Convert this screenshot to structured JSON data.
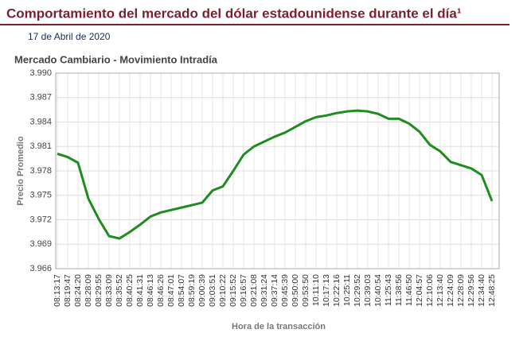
{
  "header": {
    "title": "Comportamiento del mercado del dólar estadounidense durante el día¹",
    "date": "17 de Abril de 2020"
  },
  "chart_data": {
    "type": "line",
    "title": "Mercado Cambiario - Movimiento Intradía",
    "y_label": "Precio Promedio",
    "x_label": "Hora de la transacción",
    "categories": [
      "08:13:17",
      "08:19:47",
      "08:24:20",
      "08:28:09",
      "08:29:55",
      "08:33:09",
      "08:35:52",
      "08:40:25",
      "08:41:31",
      "08:46:13",
      "08:46:26",
      "08:47:01",
      "08:54:07",
      "08:59:19",
      "09:00:39",
      "09:03:51",
      "09:10:22",
      "09:15:52",
      "09:16:57",
      "09:21:08",
      "09:31:24",
      "09:37:14",
      "09:45:39",
      "09:50:00",
      "09:53:50",
      "10:11:10",
      "10:17:13",
      "10:22:16",
      "10:25:11",
      "10:29:52",
      "10:39:03",
      "10:40:54",
      "11:25:43",
      "11:38:56",
      "11:46:50",
      "12:04:57",
      "12:10:06",
      "12:13:40",
      "12:24:09",
      "12:28:09",
      "12:29:56",
      "12:34:40",
      "12:48:25"
    ],
    "series": [
      {
        "name": "Precio Promedio",
        "color": "#1e8c1e",
        "values": [
          3.9801,
          3.9797,
          3.979,
          3.9746,
          3.9721,
          3.97,
          3.9697,
          3.9705,
          3.9714,
          3.9724,
          3.9729,
          3.9732,
          3.9735,
          3.9738,
          3.9741,
          3.9756,
          3.9761,
          3.978,
          3.98,
          3.981,
          3.9816,
          3.9822,
          3.9827,
          3.9834,
          3.9841,
          3.9846,
          3.9848,
          3.9851,
          3.9853,
          3.9854,
          3.9853,
          3.985,
          3.9844,
          3.9844,
          3.9838,
          3.9828,
          3.9812,
          3.9804,
          3.9791,
          3.9787,
          3.9783,
          3.9775,
          3.9743
        ]
      }
    ],
    "ylim": [
      3.966,
      3.99
    ],
    "yticks": [
      3.966,
      3.969,
      3.972,
      3.975,
      3.978,
      3.981,
      3.984,
      3.987,
      {
        "value": 3.99,
        "label": "3.990"
      }
    ],
    "grid": true
  }
}
